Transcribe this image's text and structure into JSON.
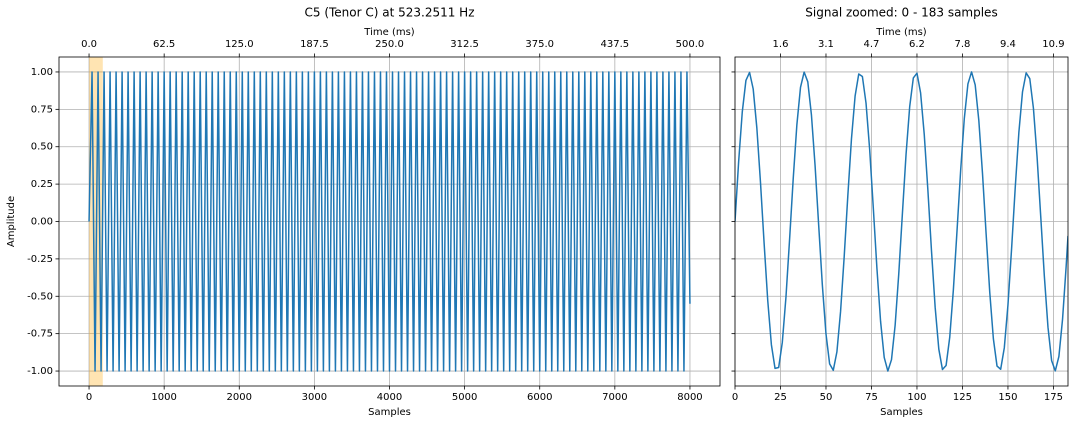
{
  "chart_data": [
    {
      "type": "line",
      "title": "C5 (Tenor C) at 523.2511 Hz",
      "xlabel": "Samples",
      "ylabel": "Amplitude",
      "x2label": "Time (ms)",
      "color": "#1f77b4",
      "grid": true,
      "span": [
        0,
        183
      ],
      "span_color": "#ffa500",
      "xlim": [
        -400,
        8400
      ],
      "xticks": [
        0,
        1000,
        2000,
        3000,
        4000,
        5000,
        6000,
        7000,
        8000
      ],
      "x2lim": [
        -25,
        525
      ],
      "x2ticks": [
        {
          "value": 0,
          "label": "0.0"
        },
        62.5,
        {
          "value": 125,
          "label": "125.0"
        },
        187.5,
        {
          "value": 250,
          "label": "250.0"
        },
        312.5,
        {
          "value": 375,
          "label": "375.0"
        },
        437.5,
        {
          "value": 500,
          "label": "500.0"
        }
      ],
      "ylim": [
        -1.1,
        1.1
      ],
      "yticks": [
        {
          "value": -1,
          "label": "-1.00"
        },
        {
          "value": -0.75,
          "label": "-0.75"
        },
        {
          "value": -0.5,
          "label": "-0.50"
        },
        {
          "value": -0.25,
          "label": "-0.25"
        },
        {
          "value": 0,
          "label": "0.00"
        },
        {
          "value": 0.25,
          "label": "0.25"
        },
        {
          "value": 0.5,
          "label": "0.50"
        },
        {
          "value": 0.75,
          "label": "0.75"
        },
        {
          "value": 1,
          "label": "1.00"
        }
      ],
      "x": [
        0,
        40,
        80,
        120,
        160,
        200,
        240,
        280,
        320,
        360,
        400,
        440,
        480,
        520,
        560,
        600,
        640,
        680,
        720,
        760,
        800,
        840,
        880,
        920,
        960,
        1000,
        1040,
        1080,
        1120,
        1160,
        1200,
        1240,
        1280,
        1320,
        1360,
        1400,
        1440,
        1480,
        1520,
        1560,
        1600,
        1640,
        1680,
        1720,
        1760,
        1800,
        1840,
        1880,
        1920,
        1960,
        2000,
        2040,
        2080,
        2120,
        2160,
        2200,
        2240,
        2280,
        2320,
        2360,
        2400,
        2440,
        2480,
        2520,
        2560,
        2600,
        2640,
        2680,
        2720,
        2760,
        2800,
        2840,
        2880,
        2920,
        2960,
        3000,
        3040,
        3080,
        3120,
        3160,
        3200,
        3240,
        3280,
        3320,
        3360,
        3400,
        3440,
        3480,
        3520,
        3560,
        3600,
        3640,
        3680,
        3720,
        3760,
        3800,
        3840,
        3880,
        3920,
        3960,
        4000,
        4040,
        4080,
        4120,
        4160,
        4200,
        4240,
        4280,
        4320,
        4360,
        4400,
        4440,
        4480,
        4520,
        4560,
        4600,
        4640,
        4680,
        4720,
        4760,
        4800,
        4840,
        4880,
        4920,
        4960,
        5000,
        5040,
        5080,
        5120,
        5160,
        5200,
        5240,
        5280,
        5320,
        5360,
        5400,
        5440,
        5480,
        5520,
        5560,
        5600,
        5640,
        5680,
        5720,
        5760,
        5800,
        5840,
        5880,
        5920,
        5960,
        6000,
        6040,
        6080,
        6120,
        6160,
        6200,
        6240,
        6280,
        6320,
        6360,
        6400,
        6440,
        6480,
        6520,
        6560,
        6600,
        6640,
        6680,
        6720,
        6760,
        6800,
        6840,
        6880,
        6920,
        6960,
        7000,
        7040,
        7080,
        7120,
        7160,
        7200,
        7240,
        7280,
        7320,
        7360,
        7400,
        7440,
        7480,
        7520,
        7560,
        7600,
        7640,
        7680,
        7720,
        7760,
        7800,
        7840,
        7880,
        7920,
        7960,
        8000
      ],
      "values": [
        0,
        1,
        -1,
        1,
        -1,
        1,
        -1,
        1,
        -1,
        1,
        -1,
        1,
        -1,
        1,
        -1,
        1,
        -1,
        1,
        -1,
        1,
        -1,
        1,
        -1,
        1,
        -1,
        1,
        -1,
        1,
        -1,
        1,
        -1,
        1,
        -1,
        1,
        -1,
        1,
        -1,
        1,
        -1,
        1,
        -1,
        1,
        -1,
        1,
        -1,
        1,
        -1,
        1,
        -1,
        1,
        -1,
        1,
        -1,
        1,
        -1,
        1,
        -1,
        1,
        -1,
        1,
        -1,
        1,
        -1,
        1,
        -1,
        1,
        -1,
        1,
        -1,
        1,
        -1,
        1,
        -1,
        1,
        -1,
        1,
        -1,
        1,
        -1,
        1,
        -1,
        1,
        -1,
        1,
        -1,
        1,
        -1,
        1,
        -1,
        1,
        -1,
        1,
        -1,
        1,
        -1,
        1,
        -1,
        1,
        -1,
        1,
        -1,
        1,
        -1,
        1,
        -1,
        1,
        -1,
        1,
        -1,
        1,
        -1,
        1,
        -1,
        1,
        -1,
        1,
        -1,
        1,
        -1,
        1,
        -1,
        1,
        -1,
        1,
        -1,
        1,
        -1,
        1,
        -1,
        1,
        -1,
        1,
        -1,
        1,
        -1,
        1,
        -1,
        1,
        -1,
        1,
        -1,
        1,
        -1,
        1,
        -1,
        1,
        -1,
        1,
        -1,
        1,
        -1,
        1,
        -1,
        1,
        -1,
        1,
        -1,
        1,
        -1,
        1,
        -1,
        1,
        -1,
        1,
        -1,
        1,
        -1,
        1,
        -1,
        1,
        -1,
        1,
        -1,
        1,
        -1,
        1,
        -1,
        1,
        -1,
        1,
        -1,
        1,
        -1,
        1,
        -1,
        1,
        -1,
        1,
        -1,
        1,
        -1,
        1,
        -1,
        1,
        -1,
        1,
        -1,
        1,
        -1,
        1,
        -0.55
      ]
    },
    {
      "type": "line",
      "title": "Signal zoomed: 0 - 183 samples",
      "xlabel": "Samples",
      "x2label": "Time (ms)",
      "color": "#1f77b4",
      "grid": true,
      "xlim": [
        0,
        183
      ],
      "xticks": [
        0,
        25,
        50,
        75,
        100,
        125,
        150,
        175
      ],
      "x2lim": [
        0,
        11.4375
      ],
      "x2ticks": [
        {
          "value": 1.5625,
          "label": "1.6"
        },
        {
          "value": 3.125,
          "label": "3.1"
        },
        {
          "value": 4.6875,
          "label": "4.7"
        },
        {
          "value": 6.25,
          "label": "6.2"
        },
        {
          "value": 7.8125,
          "label": "7.8"
        },
        {
          "value": 9.375,
          "label": "9.4"
        },
        {
          "value": 10.9375,
          "label": "10.9"
        }
      ],
      "ylim": [
        -1.1,
        1.1
      ],
      "yticks": [
        -1,
        -0.75,
        -0.5,
        -0.25,
        0,
        0.25,
        0.5,
        0.75,
        1
      ],
      "x": [
        0,
        2,
        4,
        6,
        8,
        10,
        12,
        14,
        16,
        18,
        20,
        22,
        24,
        26,
        28,
        30,
        32,
        34,
        36,
        38,
        40,
        42,
        44,
        46,
        48,
        50,
        52,
        54,
        56,
        58,
        60,
        62,
        64,
        66,
        68,
        70,
        72,
        74,
        76,
        78,
        80,
        82,
        84,
        86,
        88,
        90,
        92,
        94,
        96,
        98,
        100,
        102,
        104,
        106,
        108,
        110,
        112,
        114,
        116,
        118,
        120,
        122,
        124,
        126,
        128,
        130,
        132,
        134,
        136,
        138,
        140,
        142,
        144,
        146,
        148,
        150,
        152,
        154,
        156,
        158,
        160,
        162,
        164,
        166,
        168,
        170,
        172,
        174,
        176,
        178,
        180,
        182,
        183
      ],
      "values": [
        0,
        0.4,
        0.733,
        0.943,
        0.997,
        0.886,
        0.626,
        0.262,
        -0.145,
        -0.529,
        -0.824,
        -0.982,
        -0.976,
        -0.808,
        -0.506,
        -0.119,
        0.288,
        0.647,
        0.897,
        0.999,
        0.934,
        0.713,
        0.375,
        -0.027,
        -0.424,
        -0.751,
        -0.952,
        -0.995,
        -0.872,
        -0.604,
        -0.236,
        0.172,
        0.552,
        0.839,
        0.986,
        0.97,
        0.792,
        0.482,
        0.091,
        -0.314,
        -0.667,
        -0.909,
        -1,
        -0.924,
        -0.694,
        -0.349,
        0.054,
        0.449,
        0.768,
        0.96,
        0.992,
        0.859,
        0.582,
        0.209,
        -0.199,
        -0.574,
        -0.853,
        -0.99,
        -0.963,
        -0.775,
        -0.458,
        -0.064,
        0.34,
        0.687,
        0.92,
        1,
        0.913,
        0.674,
        0.323,
        -0.082,
        -0.473,
        -0.785,
        -0.967,
        -0.988,
        -0.844,
        -0.559,
        -0.182,
        0.226,
        0.596,
        0.867,
        0.994,
        0.955,
        0.757,
        0.433,
        0.037,
        -0.365,
        -0.707,
        -0.93,
        -0.999,
        -0.902,
        -0.654,
        -0.297,
        -0.096
      ]
    }
  ]
}
